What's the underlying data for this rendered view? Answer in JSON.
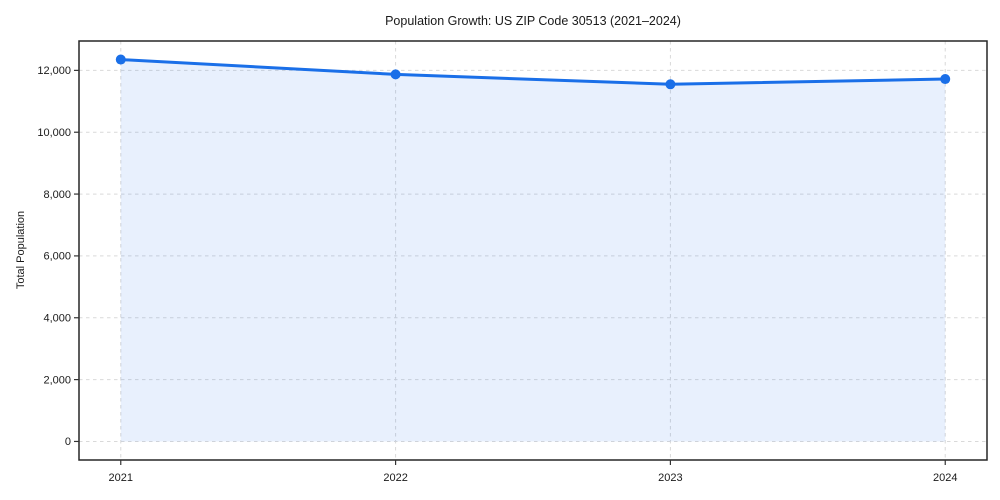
{
  "chart_data": {
    "type": "line",
    "title": "Population Growth: US ZIP Code 30513 (2021–2024)",
    "xlabel": "",
    "ylabel": "Total Population",
    "x": [
      2021,
      2022,
      2023,
      2024
    ],
    "x_tick_labels": [
      "2021",
      "2022",
      "2023",
      "2024"
    ],
    "series": [
      {
        "name": "Total Population",
        "values": [
          12350,
          11870,
          11550,
          11720
        ]
      }
    ],
    "y_ticks": [
      0,
      2000,
      4000,
      6000,
      8000,
      10000,
      12000
    ],
    "y_tick_labels": [
      "0",
      "2,000",
      "4,000",
      "6,000",
      "8,000",
      "10,000",
      "12,000"
    ],
    "ylim": [
      -600,
      12950
    ],
    "grid": true,
    "grid_style": "dashed",
    "legend_position": "none",
    "area_fill": true,
    "marker": "circle",
    "colors": {
      "line": "#1a6fe8",
      "marker": "#1a6fe8",
      "fill": "#1a6fe8",
      "fill_opacity": "0.1",
      "grid": "#d9d9d9",
      "spine": "#262626",
      "tick": "#333333",
      "text": "#1a1a1a",
      "background": "#ffffff"
    }
  }
}
